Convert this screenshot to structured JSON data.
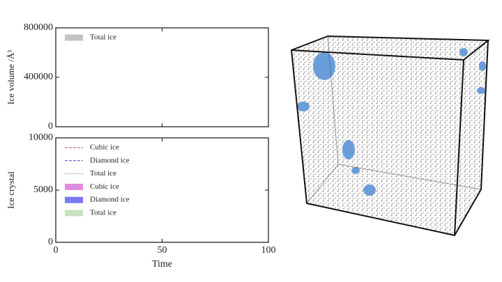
{
  "chart_data": [
    {
      "type": "line",
      "ylabel": "Ice volume /Å³",
      "xlim": [
        0,
        100
      ],
      "xticks": [
        0,
        50,
        100
      ],
      "ylim": [
        0,
        800000
      ],
      "yticks": [
        0,
        400000,
        800000
      ],
      "legend": "upper left",
      "series": [
        {
          "name": "Total ice",
          "color": "#c4c4c4",
          "style": "fill",
          "x": [],
          "values": []
        }
      ]
    },
    {
      "type": "line",
      "xlabel": "Time",
      "ylabel": "Ice crystal",
      "xlim": [
        0,
        100
      ],
      "xticks": [
        0,
        50,
        100
      ],
      "ylim": [
        0,
        10000
      ],
      "yticks": [
        0,
        5000,
        10000
      ],
      "legend": "upper left",
      "series": [
        {
          "name": "Cubic ice",
          "color": "#a05050",
          "style": "dashed",
          "x": [],
          "values": []
        },
        {
          "name": "Diamond ice",
          "color": "#3a3ad8",
          "style": "dashed",
          "x": [],
          "values": []
        },
        {
          "name": "Total ice",
          "color": "#666666",
          "style": "dotted",
          "x": [],
          "values": []
        },
        {
          "name": "Cubic ice",
          "color": "#e08be0",
          "style": "fill",
          "x": [],
          "values": []
        },
        {
          "name": "Diamond ice",
          "color": "#7a7af0",
          "style": "fill",
          "x": [],
          "values": []
        },
        {
          "name": "Total ice",
          "color": "#c6e2c0",
          "style": "fill",
          "x": [],
          "values": []
        }
      ]
    }
  ]
}
